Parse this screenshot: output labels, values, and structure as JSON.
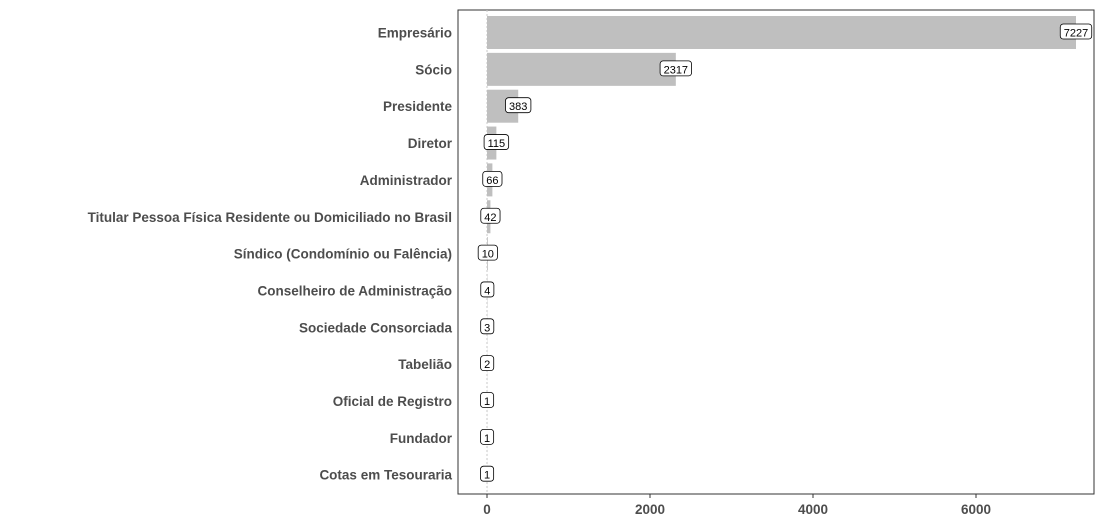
{
  "chart_data": {
    "type": "bar",
    "orientation": "horizontal",
    "categories": [
      "Empresário",
      "Sócio",
      "Presidente",
      "Diretor",
      "Administrador",
      "Titular Pessoa Física Residente ou Domiciliado no Brasil",
      "Síndico (Condomínio ou Falência)",
      "Conselheiro de Administração",
      "Sociedade Consorciada",
      "Tabelião",
      "Oficial de Registro",
      "Fundador",
      "Cotas em Tesouraria"
    ],
    "values": [
      7227,
      2317,
      383,
      115,
      66,
      42,
      10,
      4,
      3,
      2,
      1,
      1,
      1
    ],
    "data_labels": [
      "7227",
      "2317",
      "383",
      "115",
      "66",
      "42",
      "10",
      "4",
      "3",
      "2",
      "1",
      "1",
      "1"
    ],
    "title": "",
    "xlabel": "",
    "ylabel": "",
    "xlim": [
      0,
      7227
    ],
    "xticks": [
      0,
      2000,
      4000,
      6000
    ],
    "xtick_labels": [
      "0",
      "2000",
      "4000",
      "6000"
    ],
    "grid": false,
    "bar_color": "#bfbfbf",
    "zero_line_color": "#c8c8c8"
  }
}
